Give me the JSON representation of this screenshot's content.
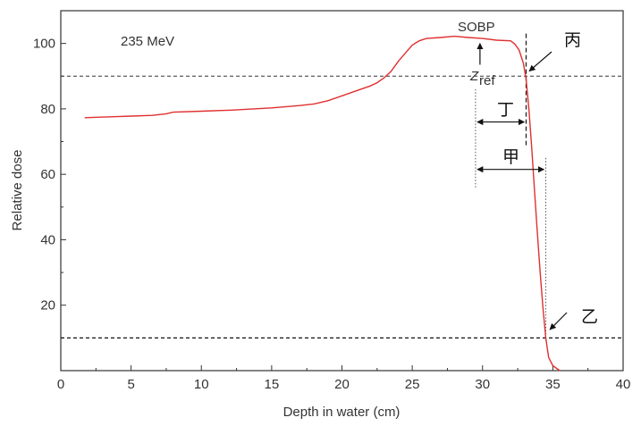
{
  "chart_data": {
    "type": "line",
    "xlabel": "Depth in water (cm)",
    "ylabel": "Relative dose",
    "xlim": [
      0,
      40
    ],
    "ylim": [
      0,
      110
    ],
    "xticks": [
      0,
      5,
      10,
      15,
      20,
      25,
      30,
      35,
      40
    ],
    "yticks": [
      20,
      40,
      60,
      80,
      100
    ],
    "xtick_labels": [
      "0",
      "5",
      "10",
      "15",
      "20",
      "25",
      "30",
      "35",
      "40"
    ],
    "ytick_labels": [
      "20",
      "40",
      "60",
      "80",
      "100"
    ],
    "grid": false,
    "energy_label": "235 MeV",
    "series": [
      {
        "color": "#e03030",
        "x": [
          1.7,
          3,
          5,
          6.5,
          7.5,
          8,
          10,
          12,
          15,
          17,
          18,
          19,
          20,
          21,
          22,
          22.5,
          23,
          23.5,
          24,
          24.5,
          25,
          25.5,
          26,
          27,
          28,
          29,
          30,
          31,
          32,
          32.3,
          32.6,
          32.9,
          33.1,
          33.3,
          33.5,
          33.7,
          33.9,
          34.1,
          34.3,
          34.5,
          34.7,
          35.0,
          35.5
        ],
        "y": [
          77.3,
          77.5,
          77.8,
          78.0,
          78.5,
          79.0,
          79.3,
          79.6,
          80.3,
          81.0,
          81.5,
          82.5,
          84.0,
          85.5,
          87.0,
          88.0,
          89.5,
          91.5,
          94.5,
          97.0,
          99.5,
          100.8,
          101.5,
          101.8,
          102.2,
          101.8,
          101.5,
          101.0,
          100.8,
          99.8,
          98.0,
          94.0,
          89.0,
          80.0,
          68.0,
          55.0,
          42.0,
          30.0,
          19.0,
          10.0,
          4.0,
          1.5,
          0.0
        ]
      }
    ],
    "reference_lines": {
      "y_high": 90,
      "y_low": 10
    },
    "markers": {
      "z_ref_x": 29.5,
      "dashed_x": 33.1,
      "dotted_right_x": 34.5
    },
    "annotations": {
      "sobp": "SOBP",
      "z": "Z",
      "ref": "ref",
      "jia": "甲",
      "yi": "乙",
      "bing": "丙",
      "ding": "丁"
    }
  }
}
